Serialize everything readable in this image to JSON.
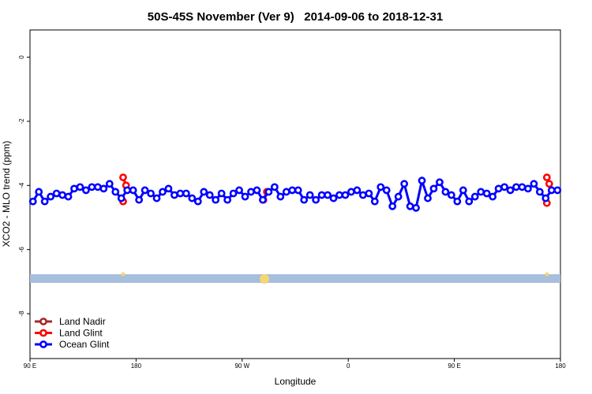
{
  "chart_data": {
    "type": "line",
    "title": "50S-45S November (Ver 9)   2014-09-06 to 2018-12-31",
    "x_label": "Longitude",
    "y_label": "XCO2 - MLO trend (ppm)",
    "xlim": [
      90,
      540
    ],
    "xticks": [
      {
        "value": 90,
        "label": "90 E"
      },
      {
        "value": 180,
        "label": "180"
      },
      {
        "value": 270,
        "label": "90 W"
      },
      {
        "value": 360,
        "label": "0"
      },
      {
        "value": 450,
        "label": "90 E"
      },
      {
        "value": 540,
        "label": "180"
      }
    ],
    "ylim": [
      -9.4,
      0.85
    ],
    "yticks": [
      0,
      -2,
      -4,
      -6,
      -8
    ],
    "legend": "bottom-left",
    "series": [
      {
        "name": "Land Nadir",
        "color": "#a52a2a",
        "x": [],
        "values": []
      },
      {
        "name": "Land Glint",
        "color": "#ff0000",
        "x": [
          169,
          171.5,
          null,
          169,
          null,
          288,
          291,
          null,
          528.5,
          530.5,
          null,
          528.5
        ],
        "values": [
          -3.75,
          -4.0,
          null,
          -4.5,
          null,
          -4.45,
          -4.2,
          null,
          -3.75,
          -3.95,
          null,
          -4.55
        ]
      },
      {
        "name": "Ocean Glint",
        "color": "#0000ff",
        "x": [
          92.5,
          97.5,
          102.5,
          107.5,
          112.5,
          117.5,
          122.5,
          127.5,
          132.5,
          137.5,
          142.5,
          147.5,
          152.5,
          157.5,
          162.5,
          167.5,
          172.5,
          177.5,
          182.5,
          187.5,
          192.5,
          197.5,
          202.5,
          207.5,
          212.5,
          217.5,
          222.5,
          227.5,
          232.5,
          237.5,
          242.5,
          247.5,
          252.5,
          257.5,
          262.5,
          267.5,
          272.5,
          277.5,
          282.5,
          287.5,
          292.5,
          297.5,
          302.5,
          307.5,
          312.5,
          317.5,
          322.5,
          327.5,
          332.5,
          337.5,
          342.5,
          347.5,
          352.5,
          357.5,
          362.5,
          367.5,
          372.5,
          377.5,
          382.5,
          387.5,
          392.5,
          397.5,
          402.5,
          407.5,
          412.5,
          417.5,
          422.5,
          427.5,
          432.5,
          437.5,
          442.5,
          447.5,
          452.5,
          457.5,
          462.5,
          467.5,
          472.5,
          477.5,
          482.5,
          487.5,
          492.5,
          497.5,
          502.5,
          507.5,
          512.5,
          517.5,
          522.5,
          527.5,
          532.5,
          537.5
        ],
        "values": [
          -4.5,
          -4.2,
          -4.5,
          -4.35,
          -4.25,
          -4.3,
          -4.35,
          -4.1,
          -4.05,
          -4.15,
          -4.05,
          -4.05,
          -4.1,
          -3.95,
          -4.2,
          -4.4,
          -4.15,
          -4.15,
          -4.45,
          -4.15,
          -4.25,
          -4.4,
          -4.2,
          -4.1,
          -4.3,
          -4.25,
          -4.25,
          -4.4,
          -4.5,
          -4.2,
          -4.3,
          -4.45,
          -4.25,
          -4.45,
          -4.25,
          -4.15,
          -4.35,
          -4.2,
          -4.15,
          -4.45,
          -4.2,
          -4.05,
          -4.35,
          -4.2,
          -4.15,
          -4.15,
          -4.45,
          -4.3,
          -4.45,
          -4.3,
          -4.3,
          -4.4,
          -4.3,
          -4.3,
          -4.2,
          -4.15,
          -4.3,
          -4.25,
          -4.5,
          -4.05,
          -4.15,
          -4.65,
          -4.35,
          -3.95,
          -4.65,
          -4.7,
          -3.85,
          -4.4,
          -4.1,
          -3.9,
          -4.2,
          -4.3,
          -4.5,
          -4.15,
          -4.5,
          -4.35,
          -4.2,
          -4.25,
          -4.35,
          -4.1,
          -4.05,
          -4.15,
          -4.05,
          -4.05,
          -4.1,
          -3.95,
          -4.2,
          -4.4,
          -4.15,
          -4.15
        ]
      }
    ]
  }
}
